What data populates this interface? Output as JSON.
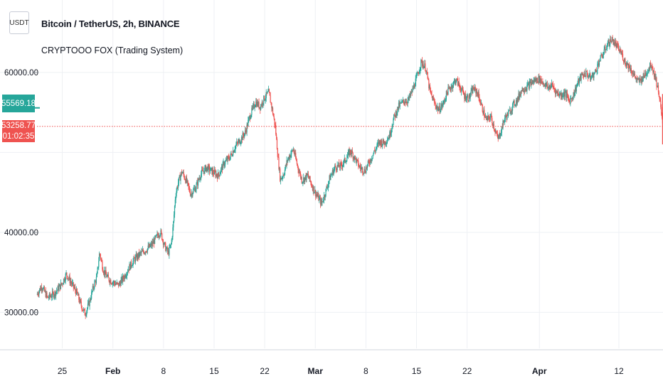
{
  "header": {
    "currency_badge": "USDT",
    "symbol_title": "Bitcoin / TetherUS, 2h, BINANCE",
    "indicator_name": "CRYPTOOO FOX (Trading System)"
  },
  "price_scale": {
    "labels": [
      "60000.00",
      "40000.00",
      "30000.00"
    ],
    "indicator_tag": "55569.18",
    "last_price_tag": "53258.77",
    "countdown": "01:02:35"
  },
  "colors": {
    "up": "#26a69a",
    "down": "#ef5350",
    "grid": "#eef0f4",
    "axis_text": "#131722",
    "price_line": "#ef5350"
  },
  "chart_data": {
    "type": "candlestick",
    "title": "Bitcoin / TetherUS, 2h, BINANCE",
    "xlabel": "",
    "ylabel": "",
    "ylim": [
      25500,
      65500
    ],
    "y_ticks": [
      30000,
      40000,
      60000
    ],
    "x_tick_labels": [
      "25",
      "Feb",
      "8",
      "15",
      "22",
      "Mar",
      "8",
      "15",
      "22",
      "Apr",
      "12"
    ],
    "x_tick_days": [
      -7,
      0,
      7,
      14,
      21,
      28,
      35,
      42,
      49,
      59,
      70
    ],
    "bold_ticks": [
      "Feb",
      "Mar",
      "Apr"
    ],
    "x_range_days": [
      -10.5,
      76.1
    ],
    "last_price": 53258.77,
    "indicator_value": 55569.18,
    "countdown": "01:02:35",
    "grid": true,
    "path": [
      [
        -10.5,
        32200
      ],
      [
        -9.8,
        33300
      ],
      [
        -9,
        31800
      ],
      [
        -8,
        32400
      ],
      [
        -7,
        33600
      ],
      [
        -6.4,
        34800
      ],
      [
        -5.8,
        33800
      ],
      [
        -5,
        32500
      ],
      [
        -4.4,
        31000
      ],
      [
        -3.8,
        29800
      ],
      [
        -3.2,
        31300
      ],
      [
        -2.6,
        33400
      ],
      [
        -2.2,
        34300
      ],
      [
        -1.8,
        37500
      ],
      [
        -1.3,
        35300
      ],
      [
        -0.6,
        34200
      ],
      [
        0,
        33800
      ],
      [
        0.8,
        33400
      ],
      [
        1.5,
        34300
      ],
      [
        2.2,
        35500
      ],
      [
        3,
        36600
      ],
      [
        3.8,
        37300
      ],
      [
        4.6,
        37800
      ],
      [
        5.4,
        38400
      ],
      [
        6,
        39300
      ],
      [
        6.6,
        40100
      ],
      [
        7.2,
        38300
      ],
      [
        7.7,
        37400
      ],
      [
        8.1,
        38500
      ],
      [
        8.4,
        41000
      ],
      [
        8.7,
        44700
      ],
      [
        9.1,
        46300
      ],
      [
        9.6,
        47600
      ],
      [
        10.2,
        46400
      ],
      [
        10.8,
        44800
      ],
      [
        11.5,
        45600
      ],
      [
        12.2,
        47300
      ],
      [
        13,
        48100
      ],
      [
        13.8,
        47600
      ],
      [
        14.6,
        47100
      ],
      [
        15.4,
        48600
      ],
      [
        16.3,
        49500
      ],
      [
        17,
        50800
      ],
      [
        17.8,
        51700
      ],
      [
        18.4,
        52600
      ],
      [
        19,
        54600
      ],
      [
        19.8,
        56300
      ],
      [
        20.4,
        55700
      ],
      [
        21,
        56800
      ],
      [
        21.6,
        57500
      ],
      [
        22.1,
        55300
      ],
      [
        22.5,
        53200
      ],
      [
        22.9,
        49200
      ],
      [
        23.2,
        46600
      ],
      [
        23.7,
        47400
      ],
      [
        24.2,
        49100
      ],
      [
        25,
        50400
      ],
      [
        25.6,
        48200
      ],
      [
        26.2,
        46500
      ],
      [
        27,
        47100
      ],
      [
        27.8,
        45400
      ],
      [
        28.4,
        44400
      ],
      [
        28.9,
        43600
      ],
      [
        29.4,
        44900
      ],
      [
        30,
        46700
      ],
      [
        30.8,
        48200
      ],
      [
        31.6,
        48300
      ],
      [
        32.3,
        49200
      ],
      [
        32.9,
        50200
      ],
      [
        33.5,
        49300
      ],
      [
        34.2,
        48100
      ],
      [
        34.9,
        47700
      ],
      [
        35.5,
        48800
      ],
      [
        36.2,
        50100
      ],
      [
        36.9,
        51300
      ],
      [
        37.6,
        51200
      ],
      [
        38.3,
        52100
      ],
      [
        38.9,
        54300
      ],
      [
        39.6,
        55800
      ],
      [
        40.3,
        56400
      ],
      [
        40.9,
        56500
      ],
      [
        41.5,
        57800
      ],
      [
        42.1,
        59400
      ],
      [
        42.7,
        61300
      ],
      [
        43.3,
        60600
      ],
      [
        43.9,
        57600
      ],
      [
        44.5,
        56200
      ],
      [
        45.1,
        55300
      ],
      [
        45.7,
        56000
      ],
      [
        46.3,
        57600
      ],
      [
        46.9,
        58300
      ],
      [
        47.5,
        59100
      ],
      [
        48.1,
        58100
      ],
      [
        48.7,
        57000
      ],
      [
        49.3,
        56800
      ],
      [
        49.9,
        58000
      ],
      [
        50.5,
        57400
      ],
      [
        51.1,
        55600
      ],
      [
        51.7,
        54000
      ],
      [
        52.3,
        54500
      ],
      [
        52.9,
        52800
      ],
      [
        53.3,
        51600
      ],
      [
        53.7,
        52600
      ],
      [
        54.2,
        54200
      ],
      [
        54.8,
        54900
      ],
      [
        55.4,
        55900
      ],
      [
        56,
        56600
      ],
      [
        56.6,
        57900
      ],
      [
        57.2,
        58100
      ],
      [
        57.8,
        58600
      ],
      [
        58.4,
        59000
      ],
      [
        59,
        59200
      ],
      [
        59.6,
        58700
      ],
      [
        60.2,
        58100
      ],
      [
        60.8,
        58400
      ],
      [
        61.4,
        57500
      ],
      [
        62,
        57200
      ],
      [
        62.6,
        57400
      ],
      [
        63.2,
        56400
      ],
      [
        63.8,
        57300
      ],
      [
        64.3,
        58600
      ],
      [
        64.9,
        59600
      ],
      [
        65.5,
        59900
      ],
      [
        66.1,
        59300
      ],
      [
        66.7,
        59900
      ],
      [
        67.3,
        61400
      ],
      [
        67.9,
        62400
      ],
      [
        68.5,
        63600
      ],
      [
        69.1,
        64100
      ],
      [
        69.7,
        63300
      ],
      [
        70.3,
        62500
      ],
      [
        70.9,
        61300
      ],
      [
        71.5,
        60700
      ],
      [
        72.1,
        59700
      ],
      [
        72.7,
        58800
      ],
      [
        73.3,
        59300
      ],
      [
        73.9,
        60100
      ],
      [
        74.5,
        61100
      ],
      [
        75.1,
        59300
      ],
      [
        75.6,
        57300
      ],
      [
        76.1,
        53258.77
      ]
    ]
  }
}
